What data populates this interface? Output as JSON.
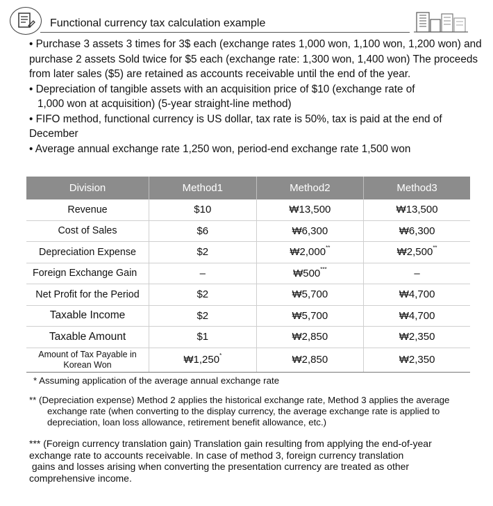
{
  "header": {
    "title": "Functional currency tax calculation example"
  },
  "bullets": [
    "• Purchase 3 assets 3 times for 3$ each (exchange rates 1,000 won, 1,100 won, 1,200 won) and purchase 2 assets Sold twice for $5 each (exchange rate: 1,300 won, 1,400 won) The proceeds from later sales ($5) are retained as accounts receivable until the end of the year.",
    "• Depreciation of tangible assets with an acquisition price of $10 (exchange rate of",
    "1,000 won at acquisition) (5-year straight-line method)",
    "• FIFO method, functional currency is US dollar, tax rate is 50%, tax is paid at the end of December",
    "• Average annual exchange rate 1,250 won, period-end exchange rate 1,500 won"
  ],
  "table": {
    "headers": [
      "Division",
      "Method1",
      "Method2",
      "Method3"
    ],
    "rows": [
      {
        "label": "Revenue",
        "m1": "$10",
        "m2": "₩13,500",
        "m3": "₩13,500",
        "m1sup": "",
        "m2sup": "",
        "m3sup": ""
      },
      {
        "label": "Cost of Sales",
        "m1": "$6",
        "m2": "₩6,300",
        "m3": "₩6,300",
        "m1sup": "",
        "m2sup": "",
        "m3sup": ""
      },
      {
        "label": "Depreciation Expense",
        "m1": "$2",
        "m2": "₩2,000",
        "m3": "₩2,500",
        "m1sup": "",
        "m2sup": "**",
        "m3sup": "**"
      },
      {
        "label": "Foreign Exchange Gain",
        "m1": "–",
        "m2": "₩500",
        "m3": "–",
        "m1sup": "",
        "m2sup": "***",
        "m3sup": ""
      },
      {
        "label": "Net Profit for the Period",
        "m1": "$2",
        "m2": "₩5,700",
        "m3": "₩4,700",
        "m1sup": "",
        "m2sup": "",
        "m3sup": ""
      },
      {
        "label": "Taxable Income",
        "m1": "$2",
        "m2": "₩5,700",
        "m3": "₩4,700",
        "m1sup": "",
        "m2sup": "",
        "m3sup": ""
      },
      {
        "label": "Taxable Amount",
        "m1": "$1",
        "m2": "₩2,850",
        "m3": "₩2,350",
        "m1sup": "",
        "m2sup": "",
        "m3sup": ""
      },
      {
        "label": "Amount of Tax Payable in Korean Won",
        "m1": "₩1,250",
        "m2": "₩2,850",
        "m3": "₩2,350",
        "m1sup": "*",
        "m2sup": "",
        "m3sup": ""
      }
    ]
  },
  "notes": {
    "n1": "*  Assuming application of the average annual exchange rate",
    "n2a": "** (Depreciation expense) Method 2 applies the historical exchange rate, Method 3 applies the average",
    "n2b": "exchange rate (when converting to the display currency, the average exchange rate is applied to",
    "n2c": "depreciation, loan loss allowance, retirement benefit allowance, etc.)",
    "n3a": "*** (Foreign currency translation gain) Translation gain resulting from applying the end-of-year",
    "n3b": "exchange rate to accounts receivable. In case of method 3, foreign currency translation",
    "n3c": " gains and losses arising when converting the presentation currency are treated as other",
    "n3d": "comprehensive income."
  },
  "icons": {
    "left": "document-list-icon",
    "right": "city-buildings-icon"
  }
}
